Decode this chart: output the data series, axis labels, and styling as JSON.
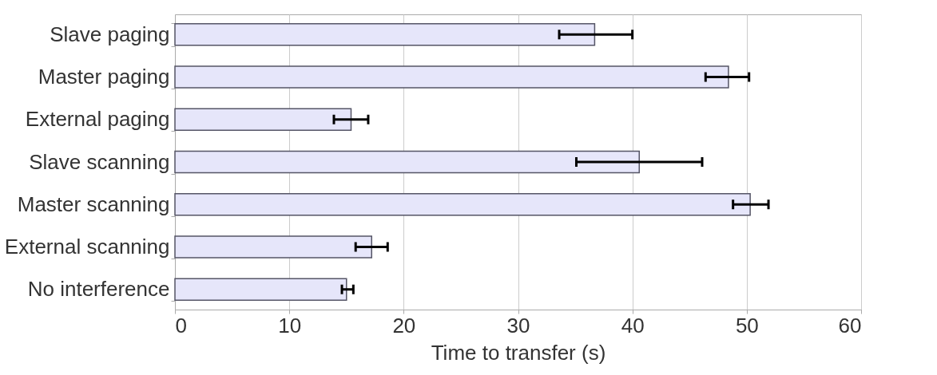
{
  "chart_data": {
    "type": "bar",
    "orientation": "horizontal",
    "xlabel": "Time to transfer (s)",
    "categories": [
      "Slave paging",
      "Master paging",
      "External paging",
      "Slave scanning",
      "Master scanning",
      "External scanning",
      "No interference"
    ],
    "values": [
      36.7,
      48.4,
      15.4,
      40.6,
      50.3,
      17.2,
      15.0
    ],
    "errors": [
      [
        33.6,
        40.0
      ],
      [
        46.4,
        50.2
      ],
      [
        13.9,
        16.9
      ],
      [
        35.1,
        46.1
      ],
      [
        48.8,
        51.9
      ],
      [
        15.8,
        18.6
      ],
      [
        14.6,
        15.6
      ]
    ],
    "color": "#e6e6fa",
    "xlim": [
      0,
      60
    ],
    "xticks": [
      0,
      10,
      20,
      30,
      40,
      50,
      60
    ],
    "grid": "x"
  }
}
